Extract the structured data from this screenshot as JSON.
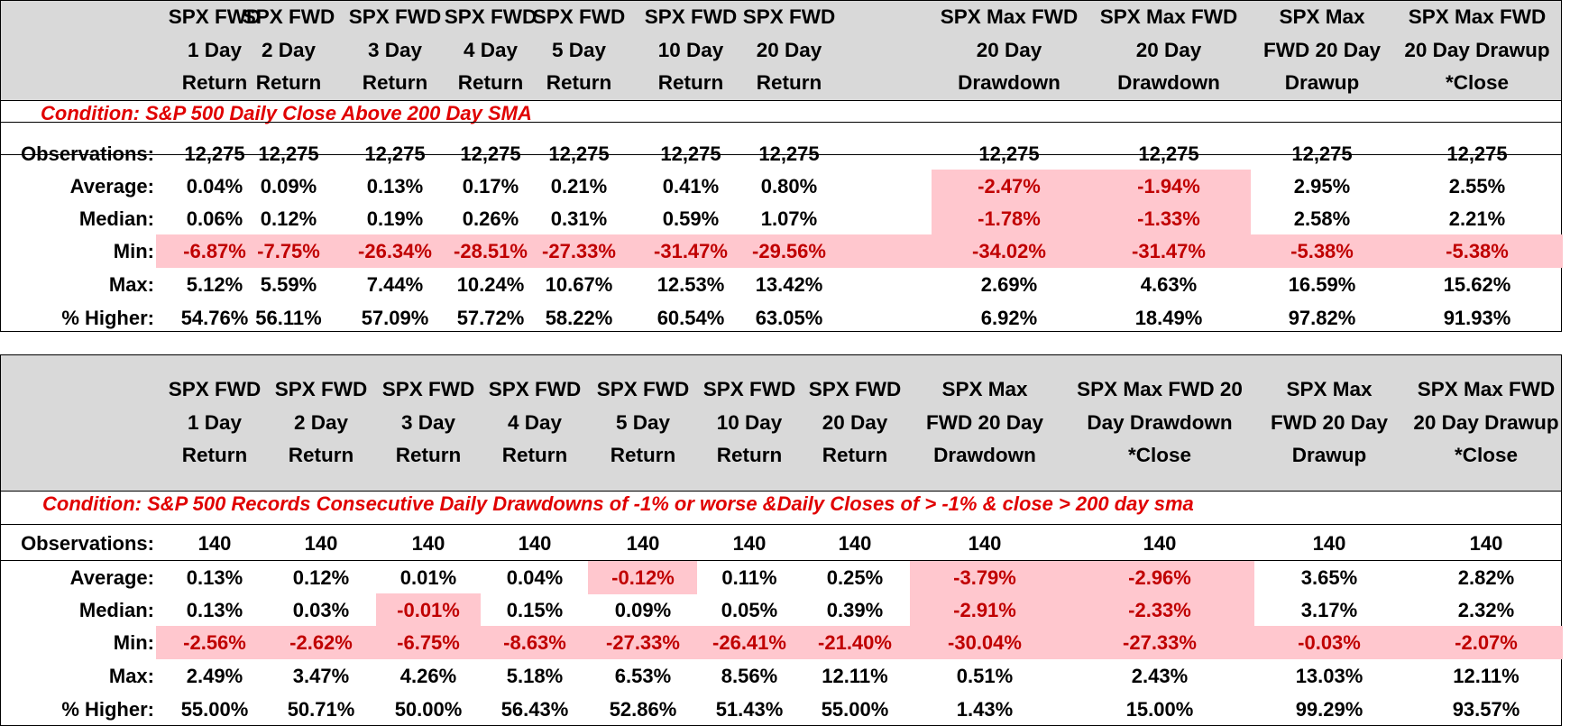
{
  "tables": [
    {
      "headers": [
        [
          "SPX FWD",
          "1 Day",
          "Return"
        ],
        [
          "SPX FWD",
          "2 Day",
          "Return"
        ],
        [
          "SPX FWD",
          "3 Day",
          "Return"
        ],
        [
          "SPX FWD",
          "4 Day",
          "Return"
        ],
        [
          "SPX FWD",
          "5 Day",
          "Return"
        ],
        [
          "SPX FWD",
          "10 Day",
          "Return"
        ],
        [
          "SPX FWD",
          "20 Day",
          "Return"
        ],
        [
          "SPX Max FWD",
          "20 Day",
          "Drawdown"
        ],
        [
          "SPX Max FWD",
          "20 Day",
          "Drawdown"
        ],
        [
          "SPX Max",
          "FWD 20 Day",
          "Drawup"
        ],
        [
          "SPX Max FWD",
          "20 Day Drawup",
          "*Close"
        ]
      ],
      "condition": "Condition:  S&P 500 Daily Close Above 200 Day SMA",
      "rows": [
        {
          "label": "Observations:",
          "values": [
            "12,275",
            "12,275",
            "12,275",
            "12,275",
            "12,275",
            "12,275",
            "12,275",
            "12,275",
            "12,275",
            "12,275",
            "12,275"
          ]
        },
        {
          "label": "Average:",
          "values": [
            "0.04%",
            "0.09%",
            "0.13%",
            "0.17%",
            "0.21%",
            "0.41%",
            "0.80%",
            "-2.47%",
            "-1.94%",
            "2.95%",
            "2.55%"
          ]
        },
        {
          "label": "Median:",
          "values": [
            "0.06%",
            "0.12%",
            "0.19%",
            "0.26%",
            "0.31%",
            "0.59%",
            "1.07%",
            "-1.78%",
            "-1.33%",
            "2.58%",
            "2.21%"
          ]
        },
        {
          "label": "Min:",
          "values": [
            "-6.87%",
            "-7.75%",
            "-26.34%",
            "-28.51%",
            "-27.33%",
            "-31.47%",
            "-29.56%",
            "-34.02%",
            "-31.47%",
            "-5.38%",
            "-5.38%"
          ]
        },
        {
          "label": "Max:",
          "values": [
            "5.12%",
            "5.59%",
            "7.44%",
            "10.24%",
            "10.67%",
            "12.53%",
            "13.42%",
            "2.69%",
            "4.63%",
            "16.59%",
            "15.62%"
          ]
        },
        {
          "label": "% Higher:",
          "values": [
            "54.76%",
            "56.11%",
            "57.09%",
            "57.72%",
            "58.22%",
            "60.54%",
            "63.05%",
            "6.92%",
            "18.49%",
            "97.82%",
            "91.93%"
          ]
        }
      ]
    },
    {
      "headers": [
        [
          "SPX FWD",
          "1 Day",
          "Return"
        ],
        [
          "SPX FWD",
          "2 Day",
          "Return"
        ],
        [
          "SPX FWD",
          "3 Day",
          "Return"
        ],
        [
          "SPX FWD",
          "4 Day",
          "Return"
        ],
        [
          "SPX FWD",
          "5 Day",
          "Return"
        ],
        [
          "SPX FWD",
          "10 Day",
          "Return"
        ],
        [
          "SPX FWD",
          "20 Day",
          "Return"
        ],
        [
          "SPX Max",
          "FWD 20 Day",
          "Drawdown"
        ],
        [
          "SPX Max FWD 20",
          "Day Drawdown",
          "*Close"
        ],
        [
          "SPX Max",
          "FWD 20 Day",
          "Drawup"
        ],
        [
          "SPX Max FWD",
          "20 Day Drawup",
          "*Close"
        ]
      ],
      "condition": "Condition:  S&P 500 Records Consecutive Daily Drawdowns of -1% or worse &Daily Closes of > -1% & close > 200 day sma",
      "rows": [
        {
          "label": "Observations:",
          "values": [
            "140",
            "140",
            "140",
            "140",
            "140",
            "140",
            "140",
            "140",
            "140",
            "140",
            "140"
          ]
        },
        {
          "label": "Average:",
          "values": [
            "0.13%",
            "0.12%",
            "0.01%",
            "0.04%",
            "-0.12%",
            "0.11%",
            "0.25%",
            "-3.79%",
            "-2.96%",
            "3.65%",
            "2.82%"
          ]
        },
        {
          "label": "Median:",
          "values": [
            "0.13%",
            "0.03%",
            "-0.01%",
            "0.15%",
            "0.09%",
            "0.05%",
            "0.39%",
            "-2.91%",
            "-2.33%",
            "3.17%",
            "2.32%"
          ]
        },
        {
          "label": "Min:",
          "values": [
            "-2.56%",
            "-2.62%",
            "-6.75%",
            "-8.63%",
            "-27.33%",
            "-26.41%",
            "-21.40%",
            "-30.04%",
            "-27.33%",
            "-0.03%",
            "-2.07%"
          ]
        },
        {
          "label": "Max:",
          "values": [
            "2.49%",
            "3.47%",
            "4.26%",
            "5.18%",
            "6.53%",
            "8.56%",
            "12.11%",
            "0.51%",
            "2.43%",
            "13.03%",
            "12.11%"
          ]
        },
        {
          "label": "% Higher:",
          "values": [
            "55.00%",
            "50.71%",
            "50.00%",
            "56.43%",
            "52.86%",
            "51.43%",
            "55.00%",
            "1.43%",
            "15.00%",
            "99.29%",
            "93.57%"
          ]
        }
      ]
    }
  ]
}
